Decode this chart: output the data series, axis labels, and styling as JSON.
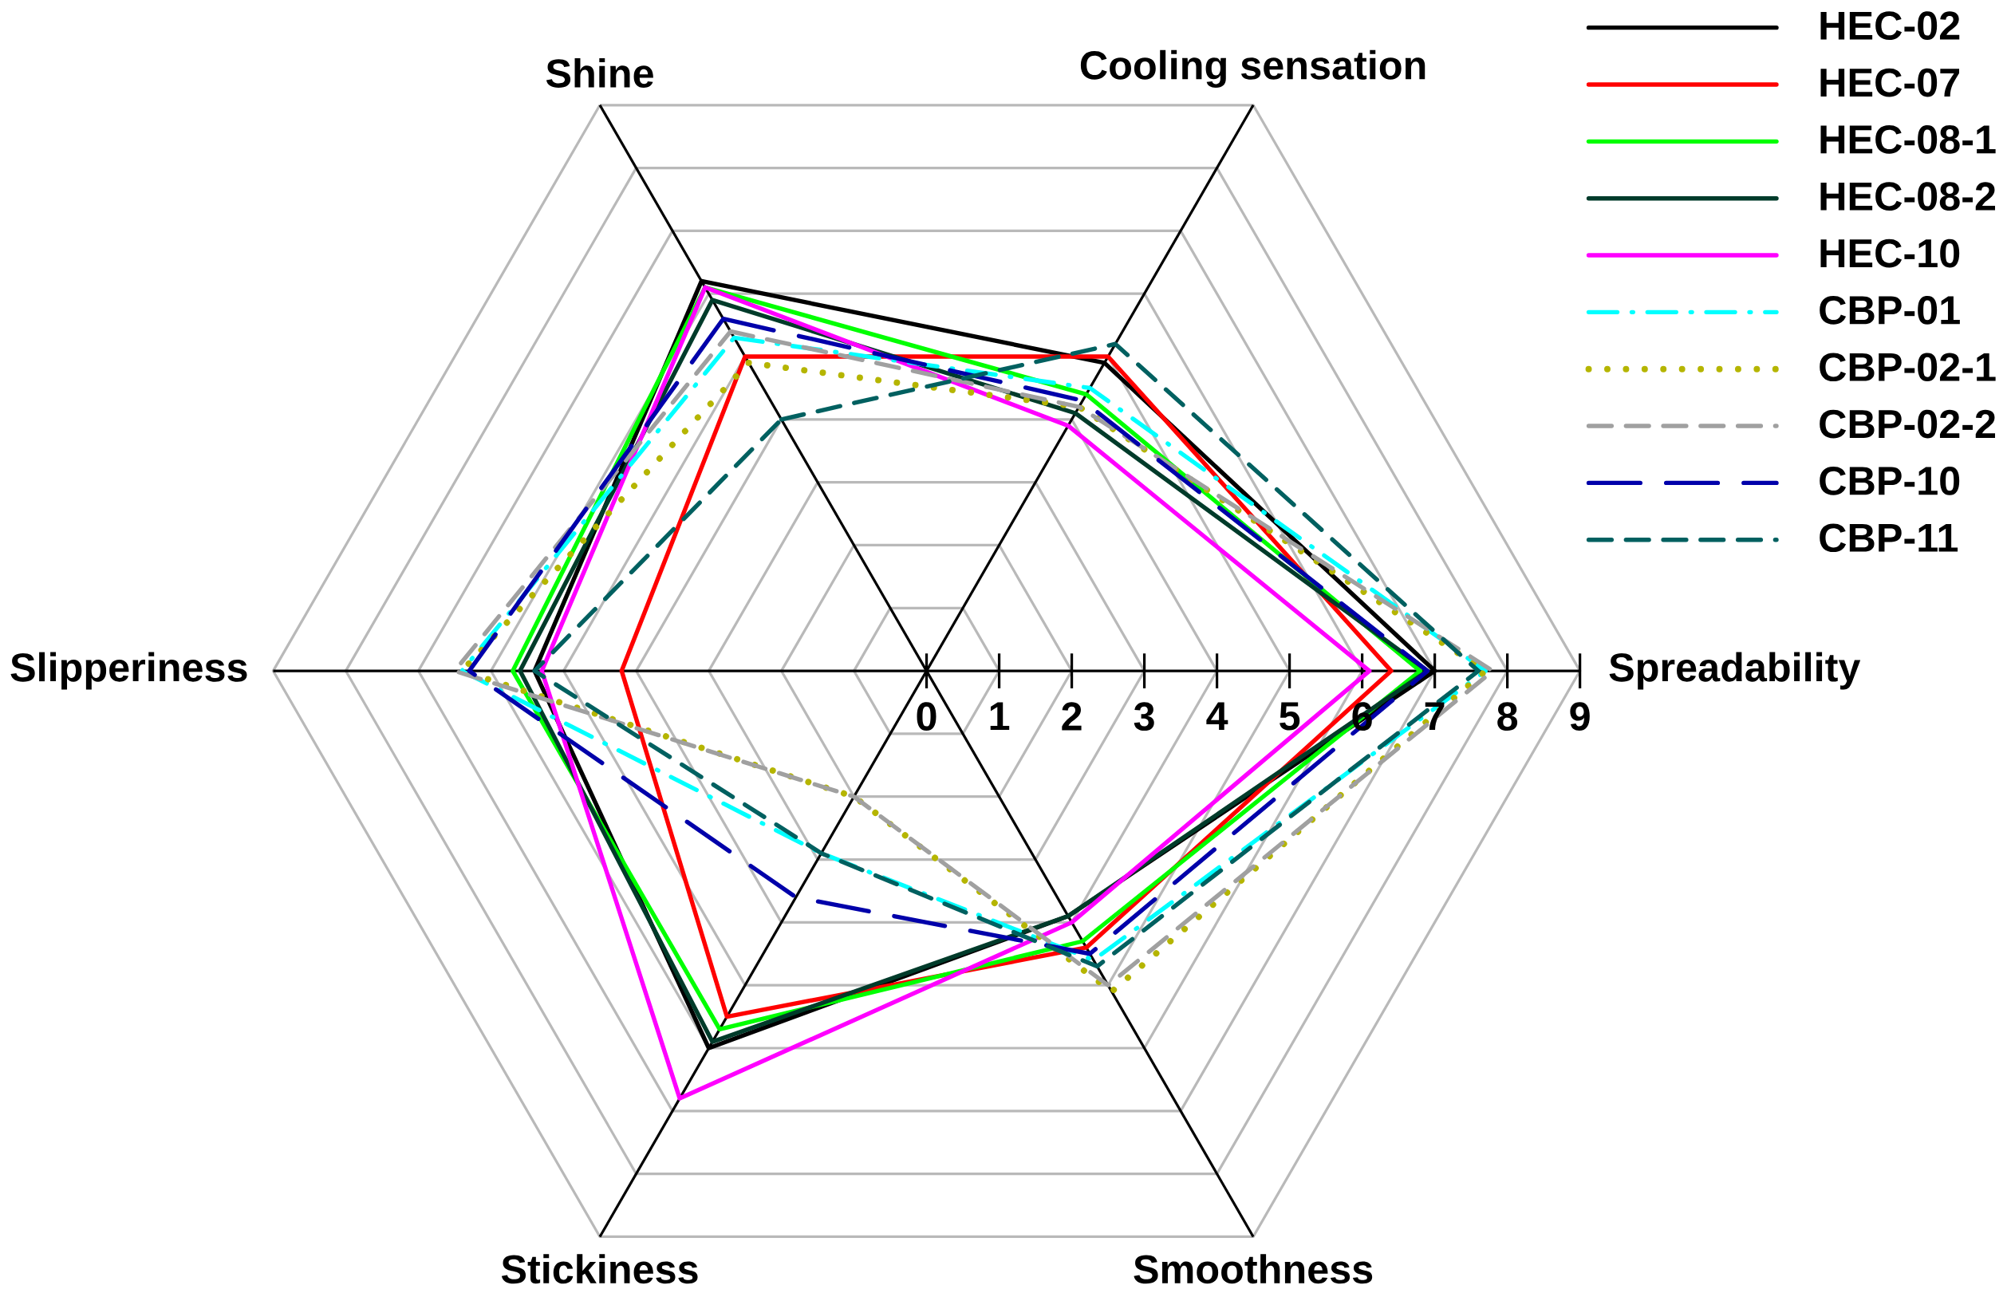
{
  "chart_data": {
    "type": "radar",
    "categories": [
      "Shine",
      "Cooling sensation",
      "Spreadability",
      "Smoothness",
      "Stickiness",
      "Slipperiness"
    ],
    "ylim": [
      0,
      9
    ],
    "yticks": [
      0,
      1,
      2,
      3,
      4,
      5,
      6,
      7,
      8,
      9
    ],
    "grid": true,
    "legend": "top right",
    "series": [
      {
        "name": "HEC-02",
        "color": "#000000",
        "line_style": "solid",
        "values": [
          6.2,
          4.9,
          7.0,
          3.9,
          6.0,
          5.4
        ]
      },
      {
        "name": "HEC-07",
        "color": "#ff0000",
        "line_style": "solid",
        "values": [
          5.0,
          5.0,
          6.4,
          4.4,
          5.5,
          4.2
        ]
      },
      {
        "name": "HEC-08-1",
        "color": "#00ff00",
        "line_style": "solid",
        "values": [
          6.1,
          4.4,
          6.8,
          4.3,
          5.7,
          5.7
        ]
      },
      {
        "name": "HEC-08-2",
        "color": "#003b2a",
        "line_style": "solid",
        "values": [
          5.9,
          4.1,
          6.9,
          3.9,
          5.9,
          5.6
        ]
      },
      {
        "name": "HEC-10",
        "color": "#ff00ff",
        "line_style": "solid",
        "values": [
          6.1,
          3.9,
          6.1,
          4.0,
          6.8,
          5.3
        ]
      },
      {
        "name": "CBP-01",
        "color": "#00ffff",
        "line_style": "dashdot",
        "values": [
          5.3,
          4.5,
          7.7,
          4.6,
          2.9,
          6.4
        ]
      },
      {
        "name": "CBP-02-1",
        "color": "#b5b500",
        "line_style": "dotted",
        "values": [
          4.9,
          4.2,
          7.7,
          5.1,
          2.0,
          6.4
        ]
      },
      {
        "name": "CBP-02-2",
        "color": "#a0a0a0",
        "line_style": "dashed",
        "values": [
          5.4,
          4.2,
          7.8,
          5.0,
          2.0,
          6.5
        ]
      },
      {
        "name": "CBP-10",
        "color": "#0000aa",
        "line_style": "longdash",
        "values": [
          5.6,
          4.3,
          6.9,
          4.5,
          3.6,
          6.3
        ]
      },
      {
        "name": "CBP-11",
        "color": "#006060",
        "line_style": "dashed",
        "values": [
          4.0,
          5.2,
          7.6,
          4.7,
          2.9,
          5.4
        ]
      }
    ]
  }
}
